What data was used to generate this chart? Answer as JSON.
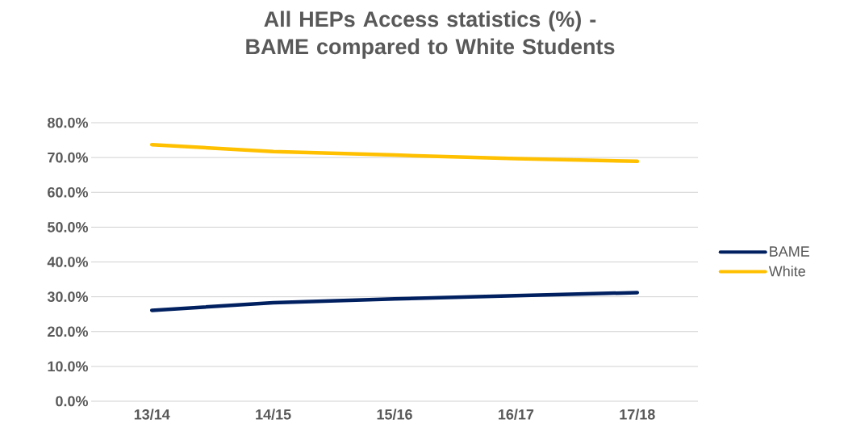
{
  "chart_data": {
    "type": "line",
    "title": "All HEPs Access statistics (%) - BAME compared to White Students",
    "categories": [
      "13/14",
      "14/15",
      "15/16",
      "16/17",
      "17/18"
    ],
    "series": [
      {
        "name": "BAME",
        "color": "#002060",
        "values": [
          26.1,
          28.3,
          29.4,
          30.3,
          31.2
        ]
      },
      {
        "name": "White",
        "color": "#ffc000",
        "values": [
          73.7,
          71.7,
          70.7,
          69.7,
          68.9
        ]
      }
    ],
    "ylim": [
      0,
      80
    ],
    "yticks": [
      {
        "value": 0,
        "label": "0.0%"
      },
      {
        "value": 10,
        "label": "10.0%"
      },
      {
        "value": 20,
        "label": "20.0%"
      },
      {
        "value": 30,
        "label": "30.0%"
      },
      {
        "value": 40,
        "label": "40.0%"
      },
      {
        "value": 50,
        "label": "50.0%"
      },
      {
        "value": 60,
        "label": "60.0%"
      },
      {
        "value": 70,
        "label": "70.0%"
      },
      {
        "value": 80,
        "label": "80.0%"
      }
    ],
    "grid": "y",
    "legend": "right",
    "marker": "none",
    "line_style": "solid"
  }
}
